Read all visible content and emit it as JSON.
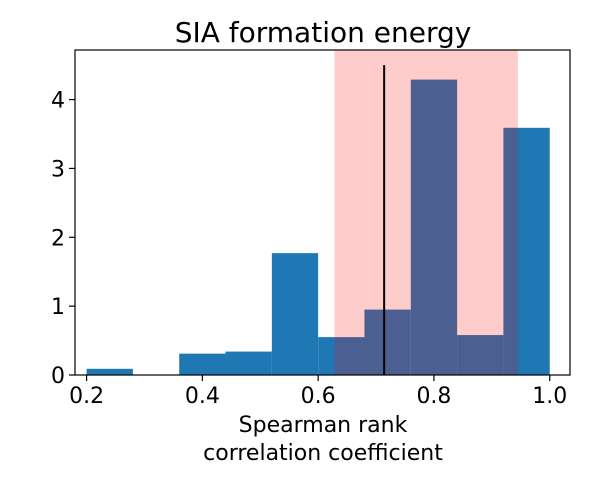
{
  "chart_data": {
    "type": "bar",
    "subtype": "histogram",
    "title": "SIA formation energy",
    "xlabel_lines": [
      "Spearman rank",
      "correlation coefficient"
    ],
    "ylabel": "",
    "xlim": [
      0.18,
      1.035
    ],
    "ylim": [
      0,
      4.72
    ],
    "xticks": [
      {
        "value": 0.2,
        "label": "0.2"
      },
      {
        "value": 0.4,
        "label": "0.4"
      },
      {
        "value": 0.6,
        "label": "0.6"
      },
      {
        "value": 0.8,
        "label": "0.8"
      },
      {
        "value": 1.0,
        "label": "1.0"
      }
    ],
    "yticks": [
      {
        "value": 0,
        "label": "0"
      },
      {
        "value": 1,
        "label": "1"
      },
      {
        "value": 2,
        "label": "2"
      },
      {
        "value": 3,
        "label": "3"
      },
      {
        "value": 4,
        "label": "4"
      }
    ],
    "bins": [
      {
        "x0": 0.2,
        "x1": 0.28,
        "value": 0.09
      },
      {
        "x0": 0.28,
        "x1": 0.36,
        "value": 0.0
      },
      {
        "x0": 0.36,
        "x1": 0.44,
        "value": 0.31
      },
      {
        "x0": 0.44,
        "x1": 0.52,
        "value": 0.34
      },
      {
        "x0": 0.52,
        "x1": 0.6,
        "value": 1.77
      },
      {
        "x0": 0.6,
        "x1": 0.68,
        "value": 0.55
      },
      {
        "x0": 0.68,
        "x1": 0.76,
        "value": 0.95
      },
      {
        "x0": 0.76,
        "x1": 0.84,
        "value": 4.29
      },
      {
        "x0": 0.84,
        "x1": 0.92,
        "value": 0.58
      },
      {
        "x0": 0.92,
        "x1": 1.0,
        "value": 3.59
      }
    ],
    "shaded_interval": {
      "x0": 0.628,
      "x1": 0.945
    },
    "vertical_line": {
      "x": 0.714,
      "y0": 0,
      "y1": 4.5
    },
    "grid": false,
    "legend": "none",
    "colors": {
      "bars": "#1f77b4",
      "shaded": "#ff0000",
      "shaded_alpha": 0.2,
      "vline": "#000000",
      "axes": "#000000"
    }
  }
}
